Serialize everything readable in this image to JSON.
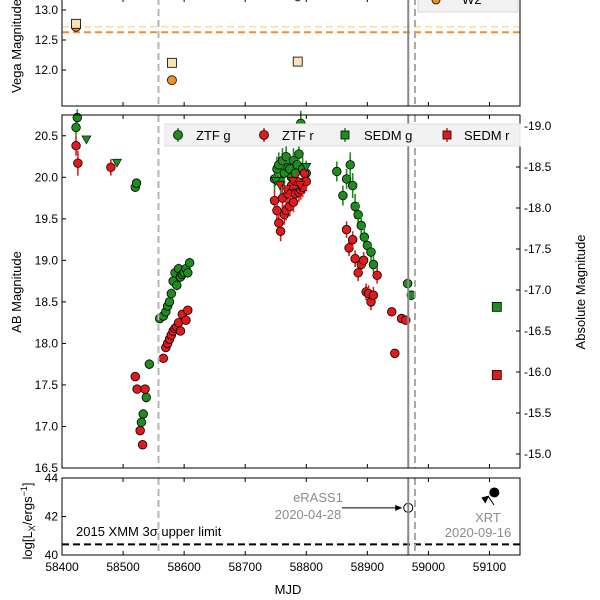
{
  "chart_data": [
    {
      "type": "scatter",
      "panel": "top",
      "ylabel": "Vega Magnitude",
      "ylim": [
        13.2,
        11.4
      ],
      "xlim": [
        58400,
        59150
      ],
      "yticks": [
        "12.0",
        "12.5",
        "13.0"
      ],
      "legend_visible": [
        "W2"
      ],
      "series": [
        {
          "name": "",
          "marker": "circle",
          "color": "#f28e2b",
          "x": [
            58423,
            58580
          ],
          "y": [
            12.72,
            11.83
          ]
        },
        {
          "name": "",
          "marker": "square",
          "color": "#f7e3b5",
          "x": [
            58423,
            58580,
            58786
          ],
          "y": [
            12.77,
            12.12,
            12.14
          ]
        }
      ],
      "hlines": [
        {
          "y": 12.63,
          "color": "#f28e2b"
        },
        {
          "y": 12.72,
          "color": "#f7e3b5"
        }
      ]
    },
    {
      "type": "scatter",
      "panel": "middle",
      "ylabel": "AB Magnitude",
      "y2label": "Absolute Magnitude",
      "ylim": [
        20.75,
        16.5
      ],
      "xlim": [
        58400,
        59150
      ],
      "yticks": [
        "16.5",
        "17.0",
        "17.5",
        "18.0",
        "18.5",
        "19.0",
        "19.5",
        "20.0",
        "20.5"
      ],
      "y2ticks": [
        "-19.0",
        "-18.5",
        "-18.0",
        "-17.5",
        "-17.0",
        "-16.5",
        "-16.0",
        "-15.5",
        "-15.0"
      ],
      "legend": [
        "ZTF g",
        "ZTF r",
        "SEDM g",
        "SEDM r"
      ],
      "legend_placement": "top",
      "series": [
        {
          "name": "ZTF g",
          "marker": "circle",
          "color": "#1e8c1e",
          "x": [
            58423,
            58425,
            58520,
            58522,
            58530,
            58533,
            58538,
            58543,
            58560,
            58566,
            58570,
            58573,
            58576,
            58579,
            58582,
            58585,
            58588,
            58591,
            58594,
            58597,
            58600,
            58603,
            58606,
            58609,
            58748,
            58752,
            58755,
            58758,
            58761,
            58764,
            58767,
            58770,
            58773,
            58776,
            58779,
            58782,
            58785,
            58788,
            58791,
            58794,
            58797,
            58800,
            58850,
            58860,
            58866,
            58872,
            58876,
            58880,
            58885,
            58890,
            58895,
            58900,
            58906,
            58910,
            58966,
            58972
          ],
          "y": [
            20.6,
            20.72,
            19.88,
            19.93,
            17.05,
            17.15,
            17.35,
            17.75,
            18.3,
            18.33,
            18.38,
            18.45,
            18.5,
            18.6,
            18.75,
            18.85,
            18.7,
            18.9,
            18.8,
            18.83,
            18.85,
            18.9,
            18.85,
            18.97,
            19.98,
            20.1,
            20.15,
            19.95,
            20.2,
            20.05,
            20.25,
            20.12,
            20.1,
            20.0,
            20.2,
            20.05,
            20.15,
            20.28,
            20.65,
            20.1,
            19.95,
            20.05,
            20.07,
            19.78,
            19.98,
            20.15,
            19.9,
            19.65,
            19.55,
            19.42,
            19.28,
            19.18,
            19.1,
            18.95,
            18.72,
            18.58
          ],
          "yerr": [
            0.1,
            0.1,
            0.05,
            0.05,
            0.05,
            0.05,
            0.06,
            0.06,
            0.05,
            0.05,
            0.05,
            0.05,
            0.05,
            0.06,
            0.06,
            0.06,
            0.06,
            0.06,
            0.06,
            0.06,
            0.06,
            0.06,
            0.06,
            0.06,
            0.15,
            0.15,
            0.15,
            0.15,
            0.15,
            0.15,
            0.15,
            0.15,
            0.15,
            0.15,
            0.15,
            0.15,
            0.15,
            0.15,
            0.15,
            0.15,
            0.15,
            0.15,
            0.12,
            0.12,
            0.12,
            0.15,
            0.15,
            0.15,
            0.15,
            0.12,
            0.12,
            0.1,
            0.1,
            0.1,
            0.06,
            0.06
          ]
        },
        {
          "name": "ZTF r",
          "marker": "circle",
          "color": "#e31a1c",
          "x": [
            58423,
            58426,
            58480,
            58520,
            58523,
            58528,
            58532,
            58536,
            58566,
            58570,
            58573,
            58576,
            58579,
            58582,
            58585,
            58588,
            58591,
            58594,
            58597,
            58603,
            58606,
            58748,
            58752,
            58755,
            58758,
            58761,
            58764,
            58767,
            58770,
            58773,
            58776,
            58779,
            58782,
            58785,
            58788,
            58791,
            58794,
            58797,
            58800,
            58866,
            58870,
            58876,
            58880,
            58885,
            58890,
            58894,
            58898,
            58902,
            58906,
            58910,
            58916,
            58940,
            58945,
            58956,
            58963
          ],
          "y": [
            20.38,
            20.17,
            20.12,
            17.6,
            17.45,
            16.95,
            16.78,
            17.45,
            17.82,
            17.95,
            18.0,
            18.05,
            18.1,
            18.15,
            18.18,
            18.2,
            18.25,
            18.15,
            18.35,
            18.28,
            18.4,
            19.72,
            19.6,
            19.45,
            19.35,
            19.75,
            19.55,
            19.6,
            19.8,
            19.65,
            19.9,
            19.7,
            19.8,
            19.95,
            19.82,
            19.85,
            19.88,
            20.05,
            19.95,
            19.37,
            19.15,
            19.25,
            19.02,
            18.85,
            18.95,
            19.0,
            18.62,
            18.6,
            18.5,
            18.58,
            18.82,
            18.38,
            17.88,
            18.3,
            18.28
          ],
          "yerr": [
            0.12,
            0.15,
            0.1,
            0.05,
            0.05,
            0.05,
            0.05,
            0.05,
            0.05,
            0.05,
            0.05,
            0.05,
            0.05,
            0.05,
            0.05,
            0.05,
            0.05,
            0.05,
            0.05,
            0.05,
            0.05,
            0.12,
            0.12,
            0.12,
            0.12,
            0.12,
            0.12,
            0.12,
            0.12,
            0.12,
            0.12,
            0.12,
            0.12,
            0.12,
            0.12,
            0.12,
            0.12,
            0.12,
            0.12,
            0.1,
            0.1,
            0.1,
            0.1,
            0.1,
            0.1,
            0.1,
            0.1,
            0.1,
            0.1,
            0.1,
            0.1,
            0.05,
            0.05,
            0.05,
            0.05
          ]
        },
        {
          "name": "",
          "marker": "triangle-down",
          "color": "#1e8c1e",
          "x": [
            58440,
            58490,
            58750,
            58800
          ],
          "y": [
            20.45,
            20.17,
            19.95,
            20.12
          ]
        },
        {
          "name": "",
          "marker": "triangle-down",
          "color": "#e31a1c",
          "x": [
            58757,
            58767,
            58778,
            58790
          ],
          "y": [
            19.9,
            19.85,
            19.95,
            19.9
          ]
        },
        {
          "name": "SEDM g",
          "marker": "square",
          "color": "#1e8c1e",
          "x": [
            59112
          ],
          "y": [
            18.44
          ],
          "yerr": [
            0.03
          ]
        },
        {
          "name": "SEDM r",
          "marker": "square",
          "color": "#e31a1c",
          "x": [
            59112
          ],
          "y": [
            17.62
          ],
          "yerr": [
            0.03
          ]
        }
      ]
    },
    {
      "type": "scatter",
      "panel": "bottom",
      "xlabel": "MJD",
      "ylabel": "log[L_X/ergs^-1]",
      "ylim": [
        40,
        44
      ],
      "xlim": [
        58400,
        59150
      ],
      "yticks": [
        "40",
        "42",
        "44"
      ],
      "xticks": [
        "58400",
        "58500",
        "58600",
        "58700",
        "58800",
        "58900",
        "59000",
        "59100"
      ],
      "upper_limit": {
        "y": 40.55,
        "label": "2015 XMM 3σ upper limit"
      },
      "points": [
        {
          "name": "eRASS1",
          "date": "2020-04-28",
          "x": 58967,
          "y": 42.45,
          "filled": false
        },
        {
          "name": "XRT",
          "date": "2020-09-16",
          "x": 59108,
          "y": 43.25,
          "filled": true
        }
      ]
    }
  ],
  "vlines": [
    {
      "x": 58558,
      "color": "#b5b5b5",
      "dash": true
    },
    {
      "x": 58967,
      "color": "#888888",
      "dash": false
    },
    {
      "x": 58978,
      "color": "#a8a8a8",
      "dash": true
    }
  ],
  "labels": {
    "top_ylabel": "Vega Magnitude",
    "mid_ylabel": "AB Magnitude",
    "mid_y2label": "Absolute Magnitude",
    "bot_ylabel_main": "log[L",
    "bot_ylabel_sub1": "X",
    "bot_ylabel_mid": "/ergs",
    "bot_ylabel_sup": "−1",
    "bot_ylabel_end": "]",
    "xlabel": "MJD",
    "legend_w2": "W2",
    "legend_ztfg": "ZTF g",
    "legend_ztfr": "ZTF r",
    "legend_sedmg": "SEDM g",
    "legend_sedmr": "SEDM r",
    "erass_name": "eRASS1",
    "erass_date": "2020-04-28",
    "xrt_name": "XRT",
    "xrt_date": "2020-09-16",
    "xmm_limit": "2015 XMM 3σ upper limit"
  }
}
